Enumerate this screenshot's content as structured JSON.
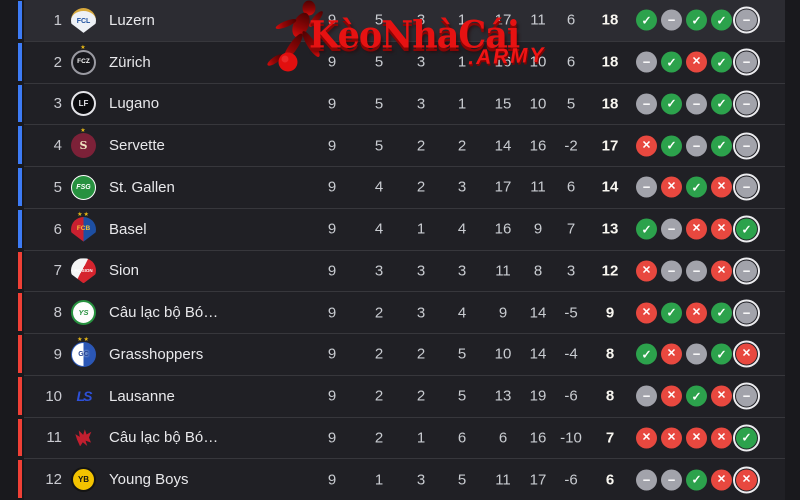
{
  "watermark": {
    "brand": "KèoNhàCái",
    "suffix": ".ARMY",
    "brand_color": "#e61212",
    "icon": "soccer-player-icon"
  },
  "colors": {
    "zone_top_bar": "#3d7bf5",
    "zone_bottom_bar": "#ef4036",
    "form_win": "#2ca24c",
    "form_draw": "#a2a3ab",
    "form_loss": "#e8483f",
    "points_text": "#f8f6f0",
    "row_highlight": "#2c2c32",
    "row_background": "#202025"
  },
  "form_glyphs": {
    "win": "✓",
    "draw": "−",
    "loss": "✕"
  },
  "table": {
    "rows": [
      {
        "position": 1,
        "team": "Luzern",
        "played": 9,
        "wins": 5,
        "draws": 3,
        "losses": 1,
        "goals_for": 17,
        "goals_against": 11,
        "goal_diff": "6",
        "points": 18,
        "zone": "blue",
        "highlighted": true,
        "badge": {
          "kind": "luzern",
          "label": "FCL",
          "stars": 0
        },
        "form": [
          "win",
          "draw",
          "win",
          "win",
          "draw"
        ]
      },
      {
        "position": 2,
        "team": "Zürich",
        "played": 9,
        "wins": 5,
        "draws": 3,
        "losses": 1,
        "goals_for": 16,
        "goals_against": 10,
        "goal_diff": "6",
        "points": 18,
        "zone": "blue",
        "highlighted": false,
        "badge": {
          "kind": "zurich",
          "label": "FCZ",
          "stars": 1
        },
        "form": [
          "draw",
          "win",
          "loss",
          "win",
          "draw"
        ]
      },
      {
        "position": 3,
        "team": "Lugano",
        "played": 9,
        "wins": 5,
        "draws": 3,
        "losses": 1,
        "goals_for": 15,
        "goals_against": 10,
        "goal_diff": "5",
        "points": 18,
        "zone": "blue",
        "highlighted": false,
        "badge": {
          "kind": "lugano",
          "label": "LF",
          "stars": 0
        },
        "form": [
          "draw",
          "win",
          "draw",
          "win",
          "draw"
        ]
      },
      {
        "position": 4,
        "team": "Servette",
        "played": 9,
        "wins": 5,
        "draws": 2,
        "losses": 2,
        "goals_for": 14,
        "goals_against": 16,
        "goal_diff": "-2",
        "points": 17,
        "zone": "blue",
        "highlighted": false,
        "badge": {
          "kind": "servette",
          "label": "S",
          "stars": 1
        },
        "form": [
          "loss",
          "win",
          "draw",
          "win",
          "draw"
        ]
      },
      {
        "position": 5,
        "team": "St. Gallen",
        "played": 9,
        "wins": 4,
        "draws": 2,
        "losses": 3,
        "goals_for": 17,
        "goals_against": 11,
        "goal_diff": "6",
        "points": 14,
        "zone": "blue",
        "highlighted": false,
        "badge": {
          "kind": "stgallen",
          "label": "FSG",
          "stars": 0
        },
        "form": [
          "draw",
          "loss",
          "win",
          "loss",
          "draw"
        ]
      },
      {
        "position": 6,
        "team": "Basel",
        "played": 9,
        "wins": 4,
        "draws": 1,
        "losses": 4,
        "goals_for": 16,
        "goals_against": 9,
        "goal_diff": "7",
        "points": 13,
        "zone": "blue",
        "highlighted": false,
        "badge": {
          "kind": "basel",
          "label": "FCB",
          "stars": 2
        },
        "form": [
          "win",
          "draw",
          "loss",
          "loss",
          "win"
        ]
      },
      {
        "position": 7,
        "team": "Sion",
        "played": 9,
        "wins": 3,
        "draws": 3,
        "losses": 3,
        "goals_for": 11,
        "goals_against": 8,
        "goal_diff": "3",
        "points": 12,
        "zone": "red",
        "highlighted": false,
        "badge": {
          "kind": "sion",
          "label": "FC SION",
          "stars": 0
        },
        "form": [
          "loss",
          "draw",
          "draw",
          "loss",
          "draw"
        ]
      },
      {
        "position": 8,
        "team": "Câu lạc bộ Bó…",
        "played": 9,
        "wins": 2,
        "draws": 3,
        "losses": 4,
        "goals_for": 9,
        "goals_against": 14,
        "goal_diff": "-5",
        "points": 9,
        "zone": "red",
        "highlighted": false,
        "badge": {
          "kind": "yverdon",
          "label": "YS",
          "stars": 0
        },
        "form": [
          "loss",
          "win",
          "loss",
          "win",
          "draw"
        ]
      },
      {
        "position": 9,
        "team": "Grasshoppers",
        "played": 9,
        "wins": 2,
        "draws": 2,
        "losses": 5,
        "goals_for": 10,
        "goals_against": 14,
        "goal_diff": "-4",
        "points": 8,
        "zone": "red",
        "highlighted": false,
        "badge": {
          "kind": "grasshoppers",
          "label": "GC",
          "stars": 2
        },
        "form": [
          "win",
          "loss",
          "draw",
          "win",
          "loss"
        ]
      },
      {
        "position": 10,
        "team": "Lausanne",
        "played": 9,
        "wins": 2,
        "draws": 2,
        "losses": 5,
        "goals_for": 13,
        "goals_against": 19,
        "goal_diff": "-6",
        "points": 8,
        "zone": "red",
        "highlighted": false,
        "badge": {
          "kind": "lausanne",
          "label": "LS",
          "stars": 0
        },
        "form": [
          "draw",
          "loss",
          "win",
          "loss",
          "draw"
        ]
      },
      {
        "position": 11,
        "team": "Câu lạc bộ Bó…",
        "played": 9,
        "wins": 2,
        "draws": 1,
        "losses": 6,
        "goals_for": 6,
        "goals_against": 16,
        "goal_diff": "-10",
        "points": 7,
        "zone": "red",
        "highlighted": false,
        "badge": {
          "kind": "winterthur",
          "label": "",
          "stars": 0
        },
        "form": [
          "loss",
          "loss",
          "loss",
          "loss",
          "win"
        ]
      },
      {
        "position": 12,
        "team": "Young Boys",
        "played": 9,
        "wins": 1,
        "draws": 3,
        "losses": 5,
        "goals_for": 11,
        "goals_against": 17,
        "goal_diff": "-6",
        "points": 6,
        "zone": "red",
        "highlighted": false,
        "badge": {
          "kind": "youngboys",
          "label": "YB",
          "stars": 0
        },
        "form": [
          "draw",
          "draw",
          "win",
          "loss",
          "loss"
        ]
      }
    ]
  }
}
